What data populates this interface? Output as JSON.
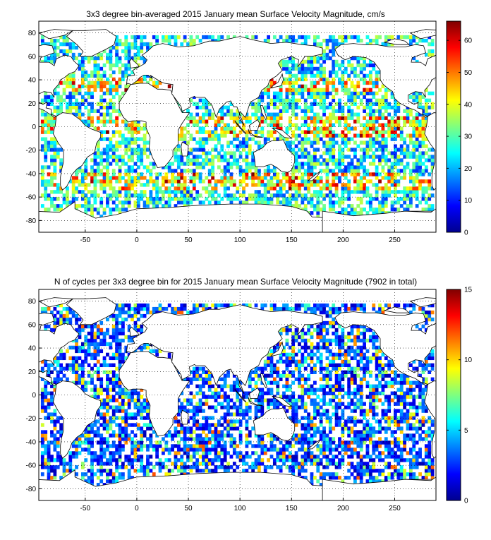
{
  "chart_data": [
    {
      "type": "heatmap",
      "title": "3x3 degree bin-averaged 2015 January mean Surface Velocity Magnitude, cm/s",
      "xlabel": "",
      "ylabel": "",
      "xlim": [
        -95,
        290
      ],
      "ylim": [
        -90,
        90
      ],
      "x_ticks": [
        "-50",
        "0",
        "50",
        "100",
        "150",
        "200",
        "250"
      ],
      "y_ticks": [
        "80",
        "60",
        "40",
        "20",
        "0",
        "-20",
        "-40",
        "-60",
        "-80"
      ],
      "grid": "dotted",
      "colorbar": {
        "min": 0,
        "max": 66,
        "ticks": [
          "0",
          "10",
          "20",
          "30",
          "40",
          "50",
          "60"
        ],
        "colormap": "jet"
      },
      "bin_size_deg": 3
    },
    {
      "type": "heatmap",
      "title": "N of cycles per 3x3 degree bin for 2015 January mean Surface Velocity Magnitude (7902 in total)",
      "xlabel": "",
      "ylabel": "",
      "xlim": [
        -95,
        290
      ],
      "ylim": [
        -90,
        90
      ],
      "x_ticks": [
        "-50",
        "0",
        "50",
        "100",
        "150",
        "200",
        "250"
      ],
      "y_ticks": [
        "80",
        "60",
        "40",
        "20",
        "0",
        "-20",
        "-40",
        "-60",
        "-80"
      ],
      "grid": "dotted",
      "colorbar": {
        "min": 0,
        "max": 15,
        "ticks": [
          "0",
          "5",
          "10",
          "15"
        ],
        "colormap": "jet"
      },
      "total_cycles": 7902,
      "bin_size_deg": 3
    }
  ]
}
